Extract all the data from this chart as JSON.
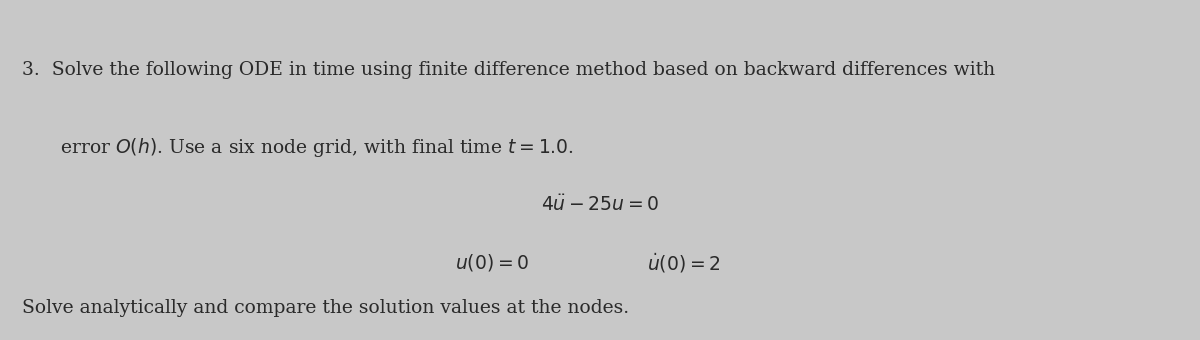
{
  "background_color": "#c8c8c8",
  "text_color": "#2a2a2a",
  "line1": "3.  Solve the following ODE in time using finite difference method based on backward differences with",
  "line2": "error $O(h)$. Use a six node grid, with final time $t = 1.0$.",
  "equation1": "$4\\ddot{u} - 25u = 0$",
  "equation2_left": "$u(0) = 0$",
  "equation2_right": "$\\dot{u}(0) = 2$",
  "line3": "Solve analytically and compare the solution values at the nodes.",
  "font_size_main": 13.5,
  "font_size_eq": 13.5
}
